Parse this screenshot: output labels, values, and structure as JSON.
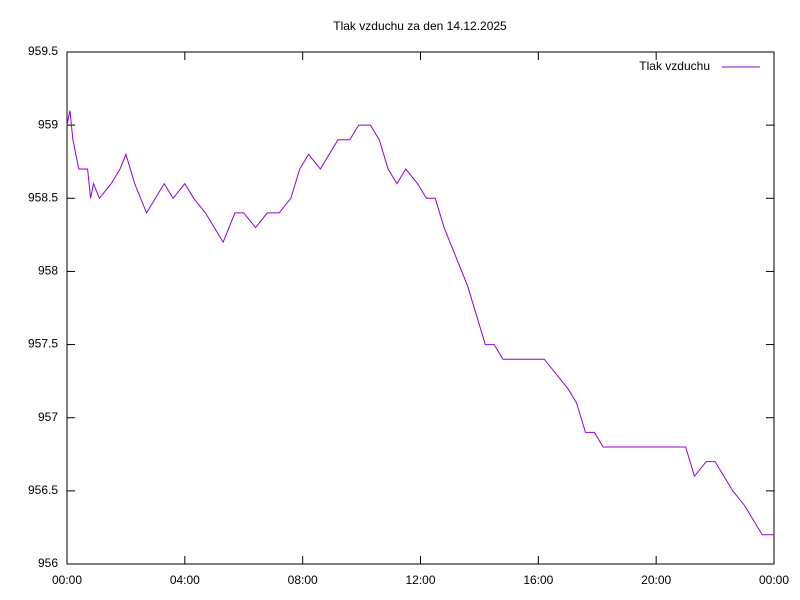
{
  "chart_data": {
    "type": "line",
    "title": "Tlak vzduchu za den 14.12.2025",
    "x": [
      0.0,
      0.1,
      0.2,
      0.4,
      0.7,
      0.8,
      0.9,
      1.1,
      1.5,
      1.8,
      2.0,
      2.3,
      2.7,
      3.0,
      3.3,
      3.6,
      4.0,
      4.3,
      4.7,
      5.0,
      5.3,
      5.7,
      6.0,
      6.4,
      6.8,
      7.2,
      7.6,
      7.9,
      8.2,
      8.6,
      8.9,
      9.2,
      9.6,
      9.9,
      10.3,
      10.6,
      10.9,
      11.2,
      11.5,
      11.9,
      12.2,
      12.5,
      12.8,
      13.2,
      13.6,
      13.9,
      14.2,
      14.5,
      14.8,
      15.3,
      15.8,
      16.2,
      16.6,
      17.0,
      17.3,
      17.6,
      17.9,
      18.2,
      18.8,
      19.4,
      20.0,
      20.6,
      21.0,
      21.3,
      21.7,
      22.0,
      22.3,
      22.6,
      23.0,
      23.3,
      23.6,
      23.9,
      24.0
    ],
    "series": [
      {
        "name": "Tlak vzduchu",
        "color": "#9400d3",
        "values": [
          959.0,
          959.1,
          958.9,
          958.7,
          958.7,
          958.5,
          958.6,
          958.5,
          958.6,
          958.7,
          958.8,
          958.6,
          958.4,
          958.5,
          958.6,
          958.5,
          958.6,
          958.5,
          958.4,
          958.3,
          958.2,
          958.4,
          958.4,
          958.3,
          958.4,
          958.4,
          958.5,
          958.7,
          958.8,
          958.7,
          958.8,
          958.9,
          958.9,
          959.0,
          959.0,
          958.9,
          958.7,
          958.6,
          958.7,
          958.6,
          958.5,
          958.5,
          958.3,
          958.1,
          957.9,
          957.7,
          957.5,
          957.5,
          957.4,
          957.4,
          957.4,
          957.4,
          957.3,
          957.2,
          957.1,
          956.9,
          956.9,
          956.8,
          956.8,
          956.8,
          956.8,
          956.8,
          956.8,
          956.6,
          956.7,
          956.7,
          956.6,
          956.5,
          956.4,
          956.3,
          956.2,
          956.2,
          956.2
        ]
      }
    ],
    "xlim": [
      0,
      24
    ],
    "xticks": [
      {
        "value": 0,
        "label": "00:00"
      },
      {
        "value": 4,
        "label": "04:00"
      },
      {
        "value": 8,
        "label": "08:00"
      },
      {
        "value": 12,
        "label": "12:00"
      },
      {
        "value": 16,
        "label": "16:00"
      },
      {
        "value": 20,
        "label": "20:00"
      },
      {
        "value": 24,
        "label": "00:00"
      }
    ],
    "ylim": [
      956,
      959.5
    ],
    "yticks": [
      956,
      956.5,
      957,
      957.5,
      958,
      958.5,
      959,
      959.5
    ],
    "grid": false,
    "legend": "top-right"
  }
}
